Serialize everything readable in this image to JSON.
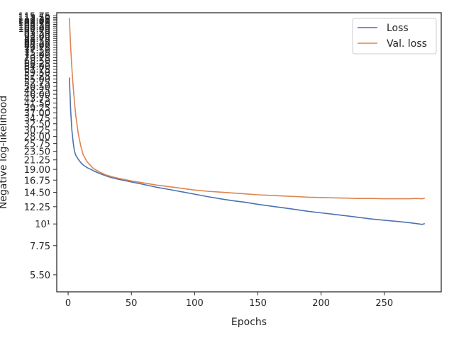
{
  "chart_data": {
    "type": "line",
    "title": "",
    "xlabel": "Epochs",
    "ylabel": "Negative log-likelihood",
    "yscale": "log",
    "xlim": [
      -9,
      295
    ],
    "ylim": [
      4.5,
      120
    ],
    "grid": false,
    "legend_position": "top-right",
    "x_ticks": [
      0,
      50,
      100,
      150,
      200,
      250
    ],
    "x_tick_labels": [
      "0",
      "50",
      "100",
      "150",
      "200",
      "250"
    ],
    "y_ticks": [
      5.5,
      7.75,
      10,
      12.25,
      14.5,
      16.75,
      19,
      21.25,
      23.5,
      25.75,
      28,
      30.25,
      32.5,
      34.75,
      37,
      39.25,
      41.5,
      43.75,
      46,
      48.25,
      50.5,
      52.75,
      55,
      57.25,
      59.5,
      61.75,
      64,
      66.25,
      68.5,
      70.75,
      73,
      75.25,
      77.5,
      79.75,
      82,
      84.25,
      86.5,
      88.75,
      91,
      93.25,
      95.5,
      97.75,
      100,
      102.25,
      104.5,
      106.75,
      109,
      111.25,
      113.5,
      115.75
    ],
    "y_tick_labels": [
      "5.50",
      "7.75",
      "10¹",
      "12.25",
      "14.50",
      "16.75",
      "19.00",
      "21.25",
      "23.50",
      "25.75",
      "28.00",
      "30.25",
      "32.50",
      "34.75",
      "37.00",
      "39.25",
      "41.50",
      "43.75",
      "46.00",
      "48.25",
      "50.50",
      "52.75",
      "55.00",
      "57.25",
      "59.50",
      "61.75",
      "64.00",
      "66.25",
      "68.50",
      "70.75",
      "73.00",
      "75.25",
      "77.50",
      "79.75",
      "82.00",
      "84.25",
      "86.50",
      "88.75",
      "91.00",
      "93.25",
      "95.50",
      "97.75",
      "100.00",
      "102.25",
      "104.50",
      "106.75",
      "109.00",
      "111.25",
      "113.50",
      "115.75"
    ],
    "x": [
      1,
      2,
      3,
      4,
      5,
      6,
      8,
      10,
      12,
      15,
      18,
      20,
      25,
      30,
      35,
      40,
      50,
      60,
      70,
      80,
      90,
      100,
      110,
      120,
      130,
      140,
      150,
      160,
      170,
      180,
      190,
      200,
      210,
      220,
      230,
      240,
      250,
      260,
      270,
      275,
      280,
      282
    ],
    "series": [
      {
        "name": "Loss",
        "color": "#4c72b0",
        "values": [
          56.0,
          38.0,
          30.0,
          26.0,
          23.5,
          22.5,
          21.4,
          20.6,
          20.0,
          19.4,
          19.0,
          18.7,
          18.1,
          17.6,
          17.2,
          16.9,
          16.4,
          15.9,
          15.4,
          15.0,
          14.6,
          14.2,
          13.8,
          13.45,
          13.15,
          12.9,
          12.6,
          12.35,
          12.1,
          11.85,
          11.6,
          11.4,
          11.2,
          11.0,
          10.8,
          10.6,
          10.45,
          10.3,
          10.15,
          10.05,
          9.95,
          10.05
        ]
      },
      {
        "name": "Val. loss",
        "color": "#dd8452",
        "values": [
          113.0,
          80.0,
          62.0,
          50.0,
          42.0,
          36.0,
          29.0,
          25.0,
          22.5,
          20.8,
          19.8,
          19.2,
          18.4,
          17.8,
          17.4,
          17.1,
          16.6,
          16.2,
          15.8,
          15.5,
          15.2,
          14.9,
          14.7,
          14.55,
          14.4,
          14.25,
          14.1,
          14.0,
          13.9,
          13.8,
          13.7,
          13.65,
          13.6,
          13.55,
          13.5,
          13.5,
          13.45,
          13.45,
          13.45,
          13.5,
          13.45,
          13.55
        ]
      }
    ]
  }
}
